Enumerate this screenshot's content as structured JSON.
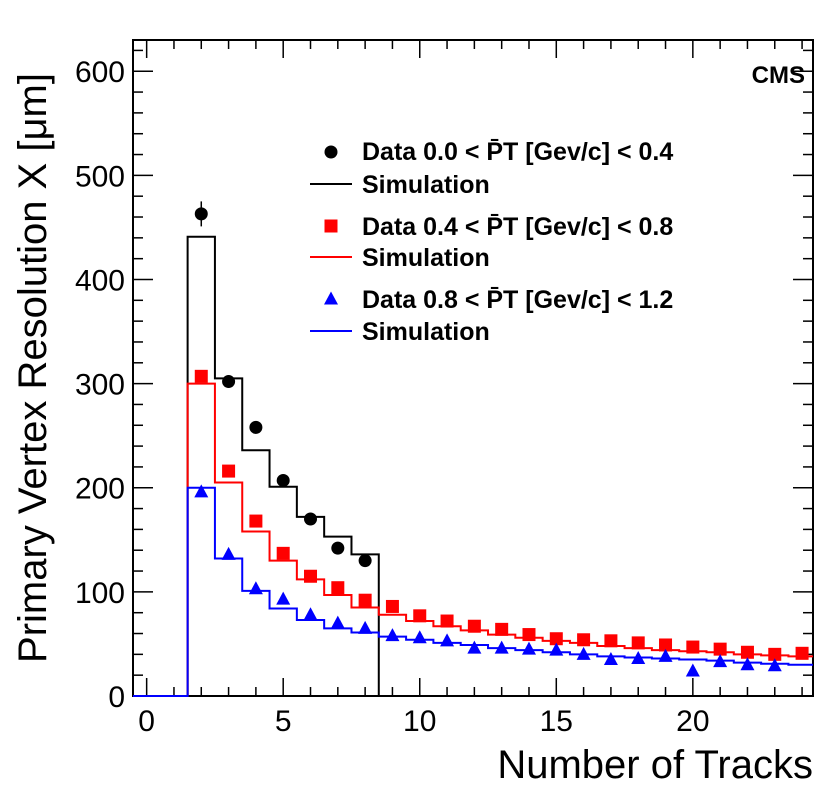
{
  "chart_data": {
    "type": "scatter",
    "experiment_label": "CMS",
    "xlabel": "Number of Tracks",
    "ylabel": "Primary Vertex Resolution X [μm]",
    "xlim": [
      -0.5,
      24.4
    ],
    "ylim": [
      0,
      630
    ],
    "x_ticks": [
      0,
      5,
      10,
      15,
      20
    ],
    "y_ticks": [
      0,
      100,
      200,
      300,
      400,
      500,
      600
    ],
    "grid": false,
    "legend_position": "top-right",
    "series": [
      {
        "name": "Data 0.0 < P̄T [Gev/c] < 0.4",
        "kind": "data",
        "marker": "circle",
        "color": "#000000",
        "x": [
          2,
          3,
          4,
          5,
          6,
          7,
          8
        ],
        "y": [
          463,
          302,
          258,
          207,
          170,
          142,
          130
        ],
        "err": [
          12,
          6,
          6,
          5,
          5,
          5,
          5
        ]
      },
      {
        "name": "Simulation",
        "kind": "simulation",
        "color": "#000000",
        "x": [
          0,
          1,
          2,
          3,
          4,
          5,
          6,
          7,
          8
        ],
        "y": [
          0,
          0,
          441,
          305,
          236,
          201,
          172,
          153,
          136
        ]
      },
      {
        "name": "Data 0.4 < P̄T [Gev/c] < 0.8",
        "kind": "data",
        "marker": "square",
        "color": "#ff0000",
        "x": [
          2,
          3,
          4,
          5,
          6,
          7,
          8,
          9,
          10,
          11,
          12,
          13,
          14,
          15,
          16,
          17,
          18,
          19,
          20,
          21,
          22,
          23,
          24
        ],
        "y": [
          307,
          216,
          168,
          137,
          115,
          104,
          92,
          86,
          77,
          72,
          67,
          64,
          59,
          55,
          54,
          53,
          51,
          49,
          47,
          45,
          42,
          40,
          41
        ]
      },
      {
        "name": "Simulation",
        "kind": "simulation",
        "color": "#ff0000",
        "x": [
          0,
          1,
          2,
          3,
          4,
          5,
          6,
          7,
          8,
          9,
          10,
          11,
          12,
          13,
          14,
          15,
          16,
          17,
          18,
          19,
          20,
          21,
          22,
          23,
          24
        ],
        "y": [
          0,
          0,
          300,
          205,
          158,
          130,
          112,
          97,
          85,
          78,
          72,
          67,
          63,
          59,
          56,
          53,
          51,
          48,
          46,
          44,
          43,
          42,
          40,
          39,
          38
        ]
      },
      {
        "name": "Data 0.8 < P̄T [Gev/c] < 1.2",
        "kind": "data",
        "marker": "triangle",
        "color": "#0000ff",
        "x": [
          2,
          3,
          4,
          5,
          6,
          7,
          8,
          9,
          10,
          11,
          12,
          13,
          14,
          15,
          16,
          17,
          18,
          19,
          20,
          21,
          22,
          23
        ],
        "y": [
          196,
          136,
          103,
          93,
          78,
          70,
          65,
          58,
          56,
          53,
          46,
          46,
          45,
          44,
          40,
          35,
          36,
          38,
          24,
          33,
          30,
          29
        ]
      },
      {
        "name": "Simulation",
        "kind": "simulation",
        "color": "#0000ff",
        "x": [
          0,
          1,
          2,
          3,
          4,
          5,
          6,
          7,
          8,
          9,
          10,
          11,
          12,
          13,
          14,
          15,
          16,
          17,
          18,
          19,
          20,
          21,
          22,
          23,
          24
        ],
        "y": [
          0,
          0,
          200,
          132,
          101,
          84,
          73,
          65,
          61,
          57,
          54,
          51,
          49,
          46,
          44,
          42,
          40,
          38,
          37,
          36,
          35,
          34,
          32,
          31,
          30
        ]
      }
    ]
  }
}
